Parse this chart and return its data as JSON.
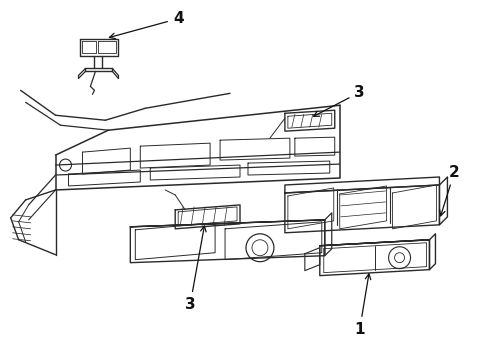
{
  "bg_color": "#ffffff",
  "line_color": "#2a2a2a",
  "text_color": "#111111",
  "fig_width": 4.9,
  "fig_height": 3.6,
  "dpi": 100
}
